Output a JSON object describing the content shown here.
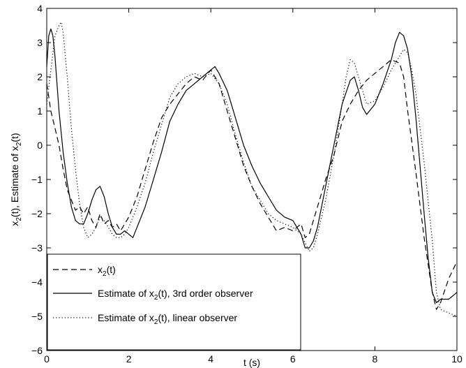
{
  "chart_data": {
    "type": "line",
    "xlabel": "t (s)",
    "ylabel": {
      "prefix": "x",
      "sub": "2",
      "suffix": "(t), Estimate of x",
      "sub2": "2",
      "suffix2": "(t)"
    },
    "xlim": [
      0,
      10
    ],
    "ylim": [
      -6,
      4
    ],
    "xticks": [
      0,
      2,
      4,
      6,
      8,
      10
    ],
    "yticks": [
      -6,
      -5,
      -4,
      -3,
      -2,
      -1,
      0,
      1,
      2,
      3,
      4
    ],
    "grid": false,
    "legend_position": "bottom-left",
    "series": [
      {
        "legend": {
          "pre": "x",
          "sub": "2",
          "post": "(t)"
        },
        "style": "dashed",
        "color": "#000000",
        "x": [
          0.0,
          0.1,
          0.2,
          0.3,
          0.4,
          0.5,
          0.6,
          0.7,
          0.8,
          0.9,
          1.0,
          1.1,
          1.2,
          1.3,
          1.4,
          1.5,
          1.6,
          1.7,
          1.8,
          1.9,
          2.0,
          2.2,
          2.4,
          2.6,
          2.8,
          3.0,
          3.2,
          3.4,
          3.6,
          3.8,
          4.0,
          4.2,
          4.4,
          4.6,
          4.8,
          5.0,
          5.2,
          5.4,
          5.6,
          5.8,
          6.0,
          6.2,
          6.3,
          6.4,
          6.6,
          6.8,
          7.0,
          7.2,
          7.4,
          7.6,
          7.8,
          8.0,
          8.2,
          8.4,
          8.6,
          8.7,
          8.8,
          9.0,
          9.2,
          9.4,
          9.5,
          9.6,
          9.8,
          10.0
        ],
        "y": [
          1.8,
          1.0,
          0.5,
          0.0,
          -0.7,
          -1.3,
          -1.6,
          -1.9,
          -1.8,
          -2.0,
          -1.8,
          -2.2,
          -2.4,
          -2.0,
          -2.3,
          -2.2,
          -2.4,
          -2.3,
          -2.5,
          -2.3,
          -2.1,
          -1.5,
          -0.7,
          0.1,
          0.8,
          1.2,
          1.5,
          1.8,
          2.0,
          1.9,
          2.2,
          1.8,
          1.0,
          0.2,
          -0.6,
          -1.2,
          -1.7,
          -2.1,
          -2.5,
          -2.4,
          -2.5,
          -2.3,
          -2.7,
          -2.6,
          -1.8,
          -1.0,
          -0.3,
          0.7,
          1.2,
          1.6,
          1.9,
          2.1,
          2.3,
          2.5,
          2.4,
          2.0,
          1.0,
          -0.8,
          -2.7,
          -4.3,
          -4.8,
          -4.6,
          -3.9,
          -3.4
        ]
      },
      {
        "legend": {
          "pre": "Estimate of x",
          "sub": "2",
          "post": "(t), 3rd order observer"
        },
        "style": "solid",
        "color": "#000000",
        "x": [
          0.0,
          0.05,
          0.1,
          0.15,
          0.2,
          0.3,
          0.4,
          0.5,
          0.6,
          0.7,
          0.8,
          0.9,
          1.0,
          1.1,
          1.2,
          1.3,
          1.4,
          1.5,
          1.6,
          1.7,
          1.8,
          1.9,
          2.0,
          2.1,
          2.2,
          2.4,
          2.6,
          2.8,
          3.0,
          3.2,
          3.4,
          3.6,
          3.8,
          4.0,
          4.1,
          4.2,
          4.4,
          4.6,
          4.8,
          5.0,
          5.2,
          5.4,
          5.6,
          5.8,
          6.0,
          6.2,
          6.3,
          6.4,
          6.5,
          6.6,
          6.8,
          7.0,
          7.2,
          7.4,
          7.5,
          7.6,
          7.7,
          7.8,
          8.0,
          8.2,
          8.4,
          8.5,
          8.6,
          8.7,
          8.8,
          8.9,
          9.0,
          9.1,
          9.2,
          9.3,
          9.4,
          9.5,
          9.6,
          9.8,
          10.0
        ],
        "y": [
          2.3,
          3.2,
          3.4,
          3.2,
          2.6,
          1.0,
          -0.2,
          -1.1,
          -1.8,
          -2.2,
          -2.3,
          -2.3,
          -2.0,
          -1.6,
          -1.3,
          -1.2,
          -1.5,
          -2.0,
          -2.4,
          -2.6,
          -2.6,
          -2.5,
          -2.6,
          -2.7,
          -2.4,
          -1.8,
          -1.0,
          -0.2,
          0.7,
          1.2,
          1.6,
          1.8,
          2.0,
          2.2,
          2.3,
          2.1,
          1.6,
          0.8,
          0.0,
          -0.6,
          -1.1,
          -1.5,
          -1.9,
          -2.1,
          -2.2,
          -2.6,
          -3.0,
          -3.0,
          -2.8,
          -2.4,
          -1.2,
          0.0,
          1.2,
          1.9,
          2.0,
          1.6,
          1.1,
          0.9,
          1.2,
          1.8,
          2.5,
          3.0,
          3.3,
          3.2,
          2.8,
          2.0,
          0.8,
          -0.6,
          -2.0,
          -3.3,
          -4.3,
          -4.6,
          -4.5,
          -4.5,
          -4.3
        ]
      },
      {
        "legend": {
          "pre": "Estimate of x",
          "sub": "2",
          "post": "(t), linear observer"
        },
        "style": "dotted",
        "color": "#000000",
        "x": [
          0.0,
          0.1,
          0.2,
          0.3,
          0.35,
          0.4,
          0.5,
          0.6,
          0.7,
          0.8,
          0.9,
          1.0,
          1.1,
          1.2,
          1.3,
          1.4,
          1.5,
          1.6,
          1.7,
          1.8,
          1.9,
          2.0,
          2.2,
          2.4,
          2.6,
          2.8,
          3.0,
          3.2,
          3.4,
          3.6,
          3.8,
          4.0,
          4.2,
          4.4,
          4.6,
          4.8,
          5.0,
          5.2,
          5.4,
          5.6,
          5.8,
          6.0,
          6.2,
          6.4,
          6.5,
          6.6,
          6.8,
          7.0,
          7.2,
          7.3,
          7.4,
          7.5,
          7.6,
          7.8,
          8.0,
          8.2,
          8.4,
          8.6,
          8.7,
          8.8,
          8.9,
          9.0,
          9.2,
          9.4,
          9.5,
          9.6,
          9.8,
          10.0
        ],
        "y": [
          1.2,
          2.2,
          3.2,
          3.5,
          3.6,
          3.3,
          2.0,
          0.5,
          -0.7,
          -1.7,
          -2.4,
          -2.7,
          -2.6,
          -2.4,
          -2.1,
          -2.2,
          -2.4,
          -2.6,
          -2.7,
          -2.7,
          -2.6,
          -2.4,
          -1.8,
          -1.1,
          -0.2,
          0.6,
          1.4,
          1.8,
          2.0,
          2.1,
          2.0,
          2.1,
          1.8,
          1.2,
          0.3,
          -0.5,
          -1.2,
          -1.6,
          -2.0,
          -2.2,
          -2.3,
          -2.4,
          -2.6,
          -3.1,
          -3.0,
          -2.6,
          -1.6,
          -0.3,
          1.2,
          2.0,
          2.5,
          2.4,
          2.0,
          1.2,
          1.3,
          1.7,
          2.2,
          2.6,
          2.8,
          2.7,
          2.2,
          1.5,
          -0.5,
          -2.8,
          -4.3,
          -4.8,
          -4.9,
          -5.0
        ]
      }
    ]
  }
}
